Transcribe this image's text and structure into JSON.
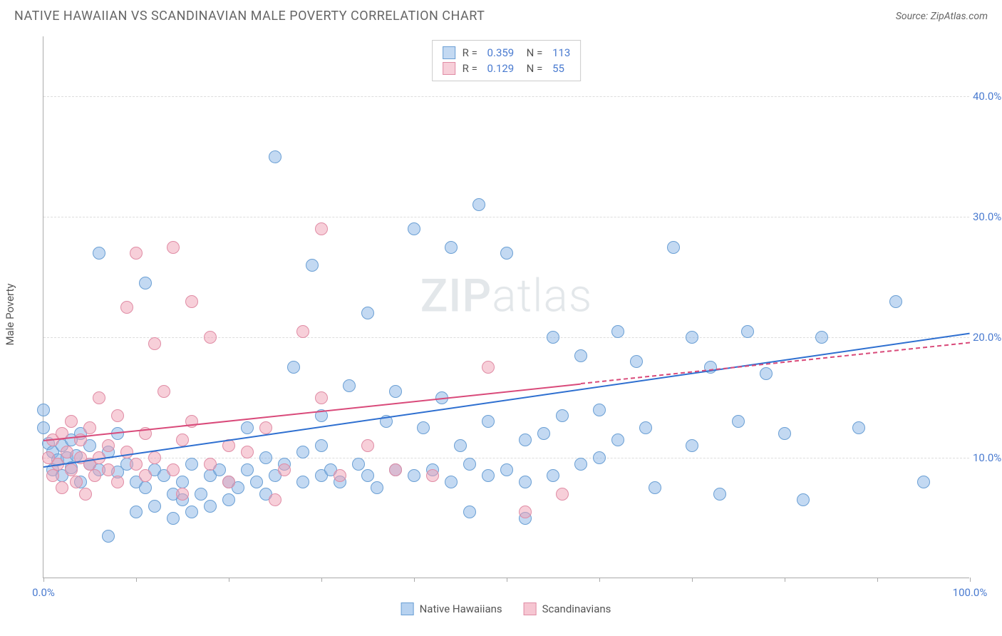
{
  "title": "NATIVE HAWAIIAN VS SCANDINAVIAN MALE POVERTY CORRELATION CHART",
  "source_label": "Source: ZipAtlas.com",
  "y_axis_label": "Male Poverty",
  "watermark": {
    "bold": "ZIP",
    "rest": "atlas"
  },
  "chart": {
    "type": "scatter",
    "background_color": "#ffffff",
    "grid_color": "#dddddd",
    "axis_color": "#aaaaaa",
    "xlim": [
      0,
      100
    ],
    "ylim": [
      0,
      45
    ],
    "xtick_positions": [
      0,
      10,
      20,
      30,
      40,
      50,
      60,
      70,
      80,
      90,
      100
    ],
    "xtick_labels": {
      "0": "0.0%",
      "100": "100.0%"
    },
    "ytick_positions": [
      10,
      20,
      30,
      40
    ],
    "ytick_labels": {
      "10": "10.0%",
      "20": "20.0%",
      "30": "30.0%",
      "40": "40.0%"
    },
    "label_color": "#4a7bd0",
    "label_fontsize": 15,
    "point_radius": 9,
    "series": [
      {
        "name": "Native Hawaiians",
        "fill_color": "rgba(135, 180, 230, 0.5)",
        "stroke_color": "#6a9fd4",
        "trend_color": "#2e6fd0",
        "R": "0.359",
        "N": "113",
        "trend": {
          "x0": 0,
          "y0": 9.3,
          "x1": 100,
          "y1": 20.4,
          "solid_until_x": 100
        },
        "points": [
          [
            0,
            12.5
          ],
          [
            0,
            14.0
          ],
          [
            0.5,
            11.2
          ],
          [
            1,
            10.5
          ],
          [
            1,
            9.0
          ],
          [
            1.5,
            9.8
          ],
          [
            2,
            11.0
          ],
          [
            2,
            8.5
          ],
          [
            2.5,
            10.0
          ],
          [
            3,
            9.2
          ],
          [
            3,
            11.5
          ],
          [
            3.5,
            10.2
          ],
          [
            4,
            12.0
          ],
          [
            4,
            8.0
          ],
          [
            5,
            9.5
          ],
          [
            5,
            11.0
          ],
          [
            6,
            9.0
          ],
          [
            6,
            27.0
          ],
          [
            7,
            10.5
          ],
          [
            7,
            3.5
          ],
          [
            8,
            8.8
          ],
          [
            8,
            12.0
          ],
          [
            9,
            9.5
          ],
          [
            10,
            8.0
          ],
          [
            10,
            5.5
          ],
          [
            11,
            7.5
          ],
          [
            11,
            24.5
          ],
          [
            12,
            6.0
          ],
          [
            12,
            9.0
          ],
          [
            13,
            8.5
          ],
          [
            14,
            7.0
          ],
          [
            14,
            5.0
          ],
          [
            15,
            8.0
          ],
          [
            15,
            6.5
          ],
          [
            16,
            9.5
          ],
          [
            16,
            5.5
          ],
          [
            17,
            7.0
          ],
          [
            18,
            8.5
          ],
          [
            18,
            6.0
          ],
          [
            19,
            9.0
          ],
          [
            20,
            8.0
          ],
          [
            20,
            6.5
          ],
          [
            21,
            7.5
          ],
          [
            22,
            9.0
          ],
          [
            22,
            12.5
          ],
          [
            23,
            8.0
          ],
          [
            24,
            7.0
          ],
          [
            24,
            10.0
          ],
          [
            25,
            35.0
          ],
          [
            25,
            8.5
          ],
          [
            26,
            9.5
          ],
          [
            27,
            17.5
          ],
          [
            28,
            8.0
          ],
          [
            28,
            10.5
          ],
          [
            29,
            26.0
          ],
          [
            30,
            8.5
          ],
          [
            30,
            13.5
          ],
          [
            31,
            9.0
          ],
          [
            32,
            8.0
          ],
          [
            33,
            16.0
          ],
          [
            34,
            9.5
          ],
          [
            35,
            8.5
          ],
          [
            35,
            22.0
          ],
          [
            36,
            7.5
          ],
          [
            37,
            13.0
          ],
          [
            38,
            9.0
          ],
          [
            38,
            15.5
          ],
          [
            40,
            8.5
          ],
          [
            40,
            29.0
          ],
          [
            41,
            12.5
          ],
          [
            42,
            9.0
          ],
          [
            43,
            15.0
          ],
          [
            44,
            8.0
          ],
          [
            44,
            27.5
          ],
          [
            45,
            11.0
          ],
          [
            46,
            9.5
          ],
          [
            47,
            31.0
          ],
          [
            48,
            8.5
          ],
          [
            48,
            13.0
          ],
          [
            50,
            9.0
          ],
          [
            50,
            27.0
          ],
          [
            52,
            11.5
          ],
          [
            52,
            8.0
          ],
          [
            54,
            12.0
          ],
          [
            55,
            8.5
          ],
          [
            55,
            20.0
          ],
          [
            56,
            13.5
          ],
          [
            58,
            9.5
          ],
          [
            58,
            18.5
          ],
          [
            60,
            14.0
          ],
          [
            60,
            10.0
          ],
          [
            62,
            11.5
          ],
          [
            62,
            20.5
          ],
          [
            64,
            18.0
          ],
          [
            65,
            12.5
          ],
          [
            66,
            7.5
          ],
          [
            68,
            27.5
          ],
          [
            70,
            11.0
          ],
          [
            70,
            20.0
          ],
          [
            72,
            17.5
          ],
          [
            73,
            7.0
          ],
          [
            75,
            13.0
          ],
          [
            76,
            20.5
          ],
          [
            78,
            17.0
          ],
          [
            80,
            12.0
          ],
          [
            82,
            6.5
          ],
          [
            84,
            20.0
          ],
          [
            88,
            12.5
          ],
          [
            92,
            23.0
          ],
          [
            95,
            8.0
          ],
          [
            52,
            5.0
          ],
          [
            46,
            5.5
          ],
          [
            30,
            11.0
          ]
        ]
      },
      {
        "name": "Scandinavians",
        "fill_color": "rgba(240, 160, 180, 0.5)",
        "stroke_color": "#e08ca5",
        "trend_color": "#d94a7a",
        "R": "0.129",
        "N": "55",
        "trend": {
          "x0": 0,
          "y0": 11.5,
          "x1": 100,
          "y1": 19.6,
          "solid_until_x": 58
        },
        "points": [
          [
            0.5,
            10.0
          ],
          [
            1,
            11.5
          ],
          [
            1,
            8.5
          ],
          [
            1.5,
            9.5
          ],
          [
            2,
            12.0
          ],
          [
            2,
            7.5
          ],
          [
            2.5,
            10.5
          ],
          [
            3,
            9.0
          ],
          [
            3,
            13.0
          ],
          [
            3.5,
            8.0
          ],
          [
            4,
            10.0
          ],
          [
            4,
            11.5
          ],
          [
            4.5,
            7.0
          ],
          [
            5,
            9.5
          ],
          [
            5,
            12.5
          ],
          [
            5.5,
            8.5
          ],
          [
            6,
            10.0
          ],
          [
            6,
            15.0
          ],
          [
            7,
            9.0
          ],
          [
            7,
            11.0
          ],
          [
            8,
            13.5
          ],
          [
            8,
            8.0
          ],
          [
            9,
            10.5
          ],
          [
            9,
            22.5
          ],
          [
            10,
            9.5
          ],
          [
            10,
            27.0
          ],
          [
            11,
            12.0
          ],
          [
            11,
            8.5
          ],
          [
            12,
            10.0
          ],
          [
            12,
            19.5
          ],
          [
            13,
            15.5
          ],
          [
            14,
            9.0
          ],
          [
            14,
            27.5
          ],
          [
            15,
            11.5
          ],
          [
            15,
            7.0
          ],
          [
            16,
            13.0
          ],
          [
            16,
            23.0
          ],
          [
            18,
            9.5
          ],
          [
            18,
            20.0
          ],
          [
            20,
            11.0
          ],
          [
            20,
            8.0
          ],
          [
            22,
            10.5
          ],
          [
            24,
            12.5
          ],
          [
            25,
            6.5
          ],
          [
            26,
            9.0
          ],
          [
            28,
            20.5
          ],
          [
            30,
            15.0
          ],
          [
            30,
            29.0
          ],
          [
            32,
            8.5
          ],
          [
            35,
            11.0
          ],
          [
            38,
            9.0
          ],
          [
            42,
            8.5
          ],
          [
            48,
            17.5
          ],
          [
            52,
            5.5
          ],
          [
            56,
            7.0
          ]
        ]
      }
    ]
  },
  "bottom_legend": [
    {
      "label": "Native Hawaiians",
      "fill": "rgba(135, 180, 230, 0.6)",
      "stroke": "#6a9fd4"
    },
    {
      "label": "Scandinavians",
      "fill": "rgba(240, 160, 180, 0.6)",
      "stroke": "#e08ca5"
    }
  ]
}
